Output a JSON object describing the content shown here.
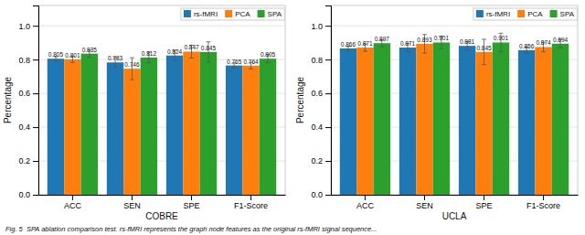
{
  "chart_data": [
    {
      "type": "bar",
      "x_label": "COBRE",
      "y_label": "Percentage",
      "categories": [
        "ACC",
        "SEN",
        "SPE",
        "F1-Score"
      ],
      "series": [
        {
          "name": "rs-fMRI",
          "values": [
            0.805,
            0.783,
            0.824,
            0.765
          ],
          "errors": [
            0.012,
            0.028,
            0.03,
            0.015
          ]
        },
        {
          "name": "PCA",
          "values": [
            0.801,
            0.746,
            0.847,
            0.764
          ],
          "errors": [
            0.018,
            0.065,
            0.038,
            0.02
          ]
        },
        {
          "name": "SPA",
          "values": [
            0.835,
            0.812,
            0.845,
            0.805
          ],
          "errors": [
            0.022,
            0.032,
            0.06,
            0.025
          ]
        }
      ],
      "ylim": [
        0,
        1.12
      ],
      "yticks": [
        {
          "value": 0,
          "label": "0.0"
        },
        0.2,
        0.4,
        0.6,
        0.8,
        {
          "value": 1,
          "label": "1.0"
        }
      ],
      "grid": true,
      "legend": "top-right",
      "data_labels": true,
      "annotations": [
        "Fig. 5  SPA ablation comparison test. rs-fMRI represents the graph node features as the original rs-fMRI signal sequence..."
      ]
    },
    {
      "type": "bar",
      "x_label": "UCLA",
      "y_label": "Percentage",
      "categories": [
        "ACC",
        "SEN",
        "SPE",
        "F1-Score"
      ],
      "series": [
        {
          "name": "rs-fMRI",
          "values": [
            0.866,
            0.871,
            0.881,
            0.856
          ],
          "errors": [
            0.012,
            0.025,
            0.025,
            0.018
          ]
        },
        {
          "name": "PCA",
          "values": [
            0.871,
            0.893,
            0.845,
            0.874
          ],
          "errors": [
            0.022,
            0.055,
            0.075,
            0.028
          ]
        },
        {
          "name": "SPA",
          "values": [
            0.897,
            0.901,
            0.901,
            0.894
          ],
          "errors": [
            0.02,
            0.038,
            0.055,
            0.025
          ]
        }
      ],
      "ylim": [
        0,
        1.12
      ],
      "yticks": [
        {
          "value": 0,
          "label": "0.0"
        },
        0.2,
        0.4,
        0.6,
        0.8,
        {
          "value": 1,
          "label": "1.0"
        }
      ],
      "grid": true,
      "legend": "top-right",
      "data_labels": true
    }
  ]
}
